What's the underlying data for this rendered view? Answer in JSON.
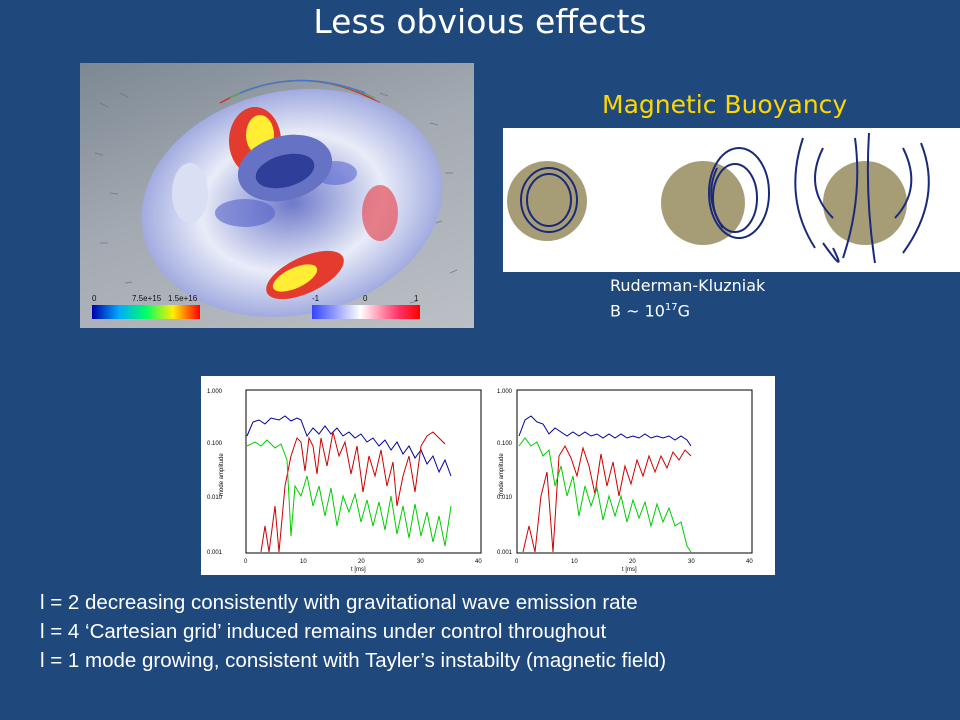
{
  "slide": {
    "title": "Less obvious effects"
  },
  "torus_figure": {
    "colorbar_left_ticks": [
      "0",
      "7.5e+15",
      "1.5e+16"
    ],
    "colorbar_right_ticks": [
      "-1",
      "0",
      "1"
    ]
  },
  "buoyancy": {
    "heading": "Magnetic Buoyancy",
    "caption_line1": "Ruderman-Kluzniak",
    "caption_line2_prefix": "B ~ 10",
    "caption_line2_exp": "17",
    "caption_line2_suffix": "G"
  },
  "mode_plots": {
    "ylabel": "mode amplitude",
    "xlabel": "t [ms]",
    "y_ticks": [
      "1.000",
      "0.100",
      "0.010",
      "0.001"
    ],
    "x_ticks": [
      "0",
      "10",
      "20",
      "30",
      "40"
    ],
    "colors": {
      "l2": "#000099",
      "l4": "#00cc00",
      "l1": "#cc0000"
    }
  },
  "bullets": [
    "l = 2 decreasing consistently with gravitational wave emission rate",
    "l = 4 ‘Cartesian grid’ induced remains under control throughout",
    "l = 1 mode growing, consistent with Tayler’s instabilty  (magnetic field)"
  ]
}
